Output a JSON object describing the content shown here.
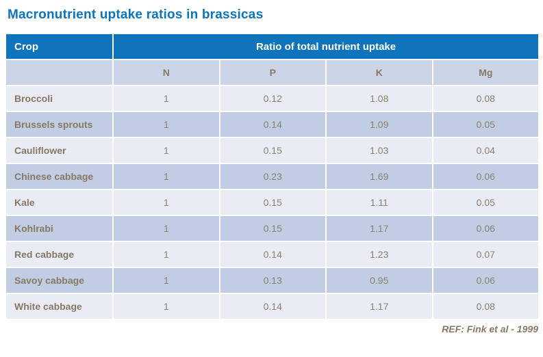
{
  "title": "Macronutrient uptake ratios in brassicas",
  "colors": {
    "title_blue": "#0d72bc",
    "header_blue": "#0f74bc",
    "subheader_bg": "#ccd4e8",
    "row_light_bg": "#e9ecf4",
    "row_dark_bg": "#c1cde2",
    "text_brown": "#877863",
    "header_text": "#ffffff"
  },
  "table": {
    "crop_header": "Crop",
    "ratio_header": "Ratio of total nutrient uptake",
    "nutrient_columns": [
      "N",
      "P",
      "K",
      "Mg"
    ],
    "rows": [
      {
        "crop": "Broccoli",
        "values": [
          "1",
          "0.12",
          "1.08",
          "0.08"
        ]
      },
      {
        "crop": "Brussels sprouts",
        "values": [
          "1",
          "0.14",
          "1.09",
          "0.05"
        ]
      },
      {
        "crop": "Cauliflower",
        "values": [
          "1",
          "0.15",
          "1.03",
          "0.04"
        ]
      },
      {
        "crop": "Chinese cabbage",
        "values": [
          "1",
          "0.23",
          "1.69",
          "0.06"
        ]
      },
      {
        "crop": "Kale",
        "values": [
          "1",
          "0.15",
          "1.11",
          "0.05"
        ]
      },
      {
        "crop": "Kohlrabi",
        "values": [
          "1",
          "0.15",
          "1.17",
          "0.06"
        ]
      },
      {
        "crop": "Red cabbage",
        "values": [
          "1",
          "0.14",
          "1.23",
          "0.07"
        ]
      },
      {
        "crop": "Savoy cabbage",
        "values": [
          "1",
          "0.13",
          "0.95",
          "0.06"
        ]
      },
      {
        "crop": "White cabbage",
        "values": [
          "1",
          "0.14",
          "1.17",
          "0.08"
        ]
      }
    ]
  },
  "footer": {
    "reference": "REF: Fink et al - 1999"
  }
}
